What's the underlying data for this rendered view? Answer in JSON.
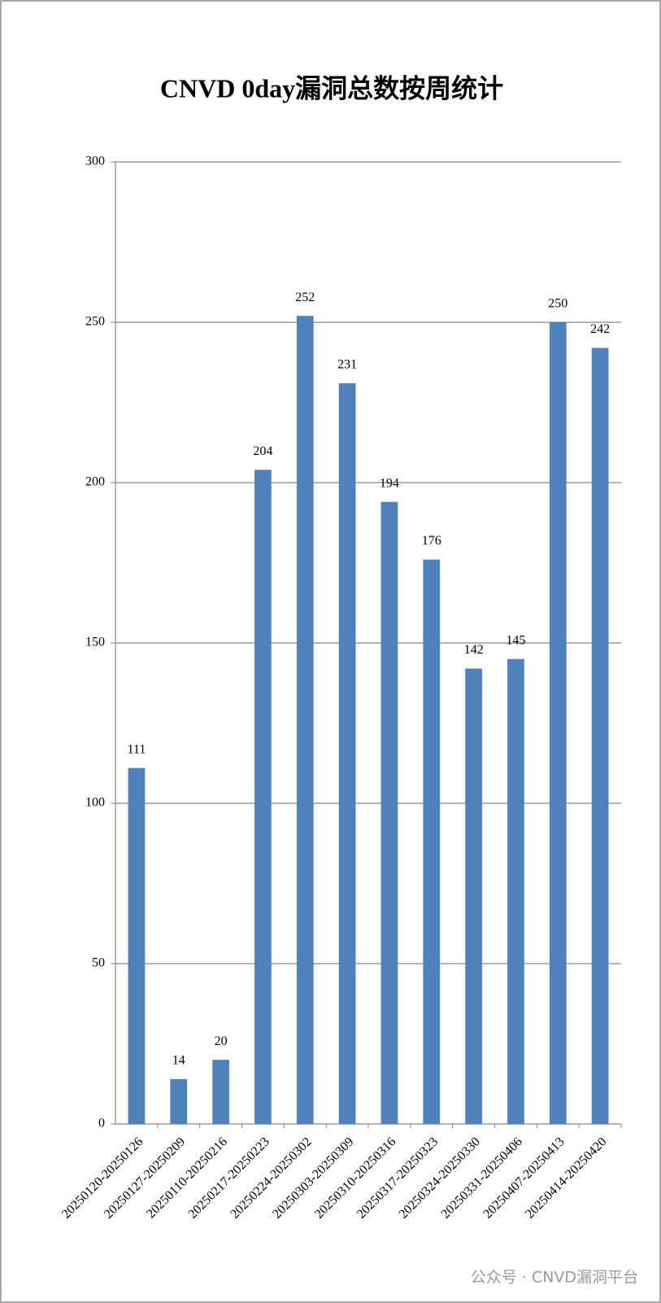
{
  "chart_data": {
    "type": "bar",
    "title": "CNVD 0day漏洞总数按周统计",
    "categories": [
      "20250120-20250126",
      "20250127-20250209",
      "20250110-20250216",
      "20250217-20250223",
      "20250224-20250302",
      "20250303-20250309",
      "20250310-20250316",
      "20250317-20250323",
      "20250324-20250330",
      "20250331-20250406",
      "20250407-20250413",
      "20250414-20250420"
    ],
    "values": [
      111,
      14,
      20,
      204,
      252,
      231,
      194,
      176,
      142,
      145,
      250,
      242
    ],
    "color": "#4f81bd",
    "ylim": [
      0,
      300
    ],
    "yticks": [
      0,
      50,
      100,
      150,
      200,
      250,
      300
    ],
    "grid": true,
    "annotation": "公众号 · CNVD漏洞平台"
  }
}
